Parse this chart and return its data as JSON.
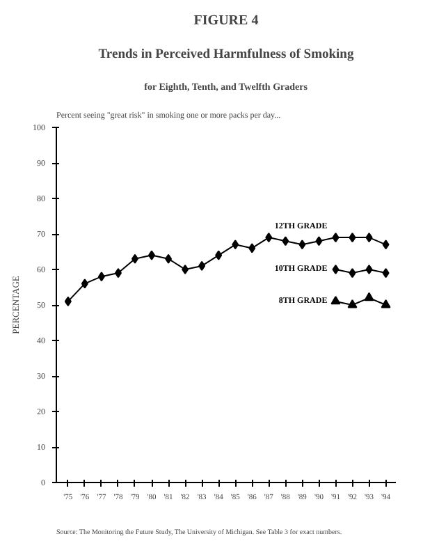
{
  "chart_data": {
    "type": "line",
    "title": "FIGURE 4",
    "subtitle": "Trends in Perceived Harmfulness of Smoking",
    "annotations": [
      "for Eighth, Tenth, and Twelfth Graders",
      "Percent seeing \"great risk\" in smoking one or more packs per day...",
      "Source:  The Monitoring the Future Study, The University of Michigan.  See Table 3 for exact numbers."
    ],
    "ylabel": "PERCENTAGE",
    "x": [
      1975,
      1976,
      1977,
      1978,
      1979,
      1980,
      1981,
      1982,
      1983,
      1984,
      1985,
      1986,
      1987,
      1988,
      1989,
      1990,
      1991,
      1992,
      1993,
      1994
    ],
    "series": [
      {
        "name": "12TH GRADE",
        "color": "#000000",
        "marker": "diamond",
        "values": [
          51,
          56,
          58,
          59,
          63,
          64,
          63,
          60,
          61,
          64,
          67,
          66,
          69,
          68,
          67,
          68,
          69,
          69,
          69,
          67
        ]
      },
      {
        "name": "10TH GRADE",
        "color": "#000000",
        "marker": "diamond",
        "x": [
          1991,
          1992,
          1993,
          1994
        ],
        "values": [
          60,
          59,
          60,
          59
        ]
      },
      {
        "name": "8TH GRADE",
        "color": "#000000",
        "marker": "triangle",
        "x": [
          1991,
          1992,
          1993,
          1994
        ],
        "values": [
          51,
          50,
          52,
          50
        ]
      }
    ],
    "xlim": [
      1974.3,
      1994.6
    ],
    "xticks": [
      {
        "value": 1975,
        "label": "'75"
      },
      {
        "value": 1976,
        "label": "'76"
      },
      {
        "value": 1977,
        "label": "'77"
      },
      {
        "value": 1978,
        "label": "'78"
      },
      {
        "value": 1979,
        "label": "'79"
      },
      {
        "value": 1980,
        "label": "'80"
      },
      {
        "value": 1981,
        "label": "'81"
      },
      {
        "value": 1982,
        "label": "'82"
      },
      {
        "value": 1983,
        "label": "'83"
      },
      {
        "value": 1984,
        "label": "'84"
      },
      {
        "value": 1985,
        "label": "'85"
      },
      {
        "value": 1986,
        "label": "'86"
      },
      {
        "value": 1987,
        "label": "'87"
      },
      {
        "value": 1988,
        "label": "'88"
      },
      {
        "value": 1989,
        "label": "'89"
      },
      {
        "value": 1990,
        "label": "'90"
      },
      {
        "value": 1991,
        "label": "'91"
      },
      {
        "value": 1992,
        "label": "'92"
      },
      {
        "value": 1993,
        "label": "'93"
      },
      {
        "value": 1994,
        "label": "'94"
      }
    ],
    "ylim": [
      0,
      100
    ],
    "yticks": [
      0,
      10,
      20,
      30,
      40,
      50,
      60,
      70,
      80,
      90,
      100
    ],
    "grid": false,
    "line_style": "solid"
  }
}
